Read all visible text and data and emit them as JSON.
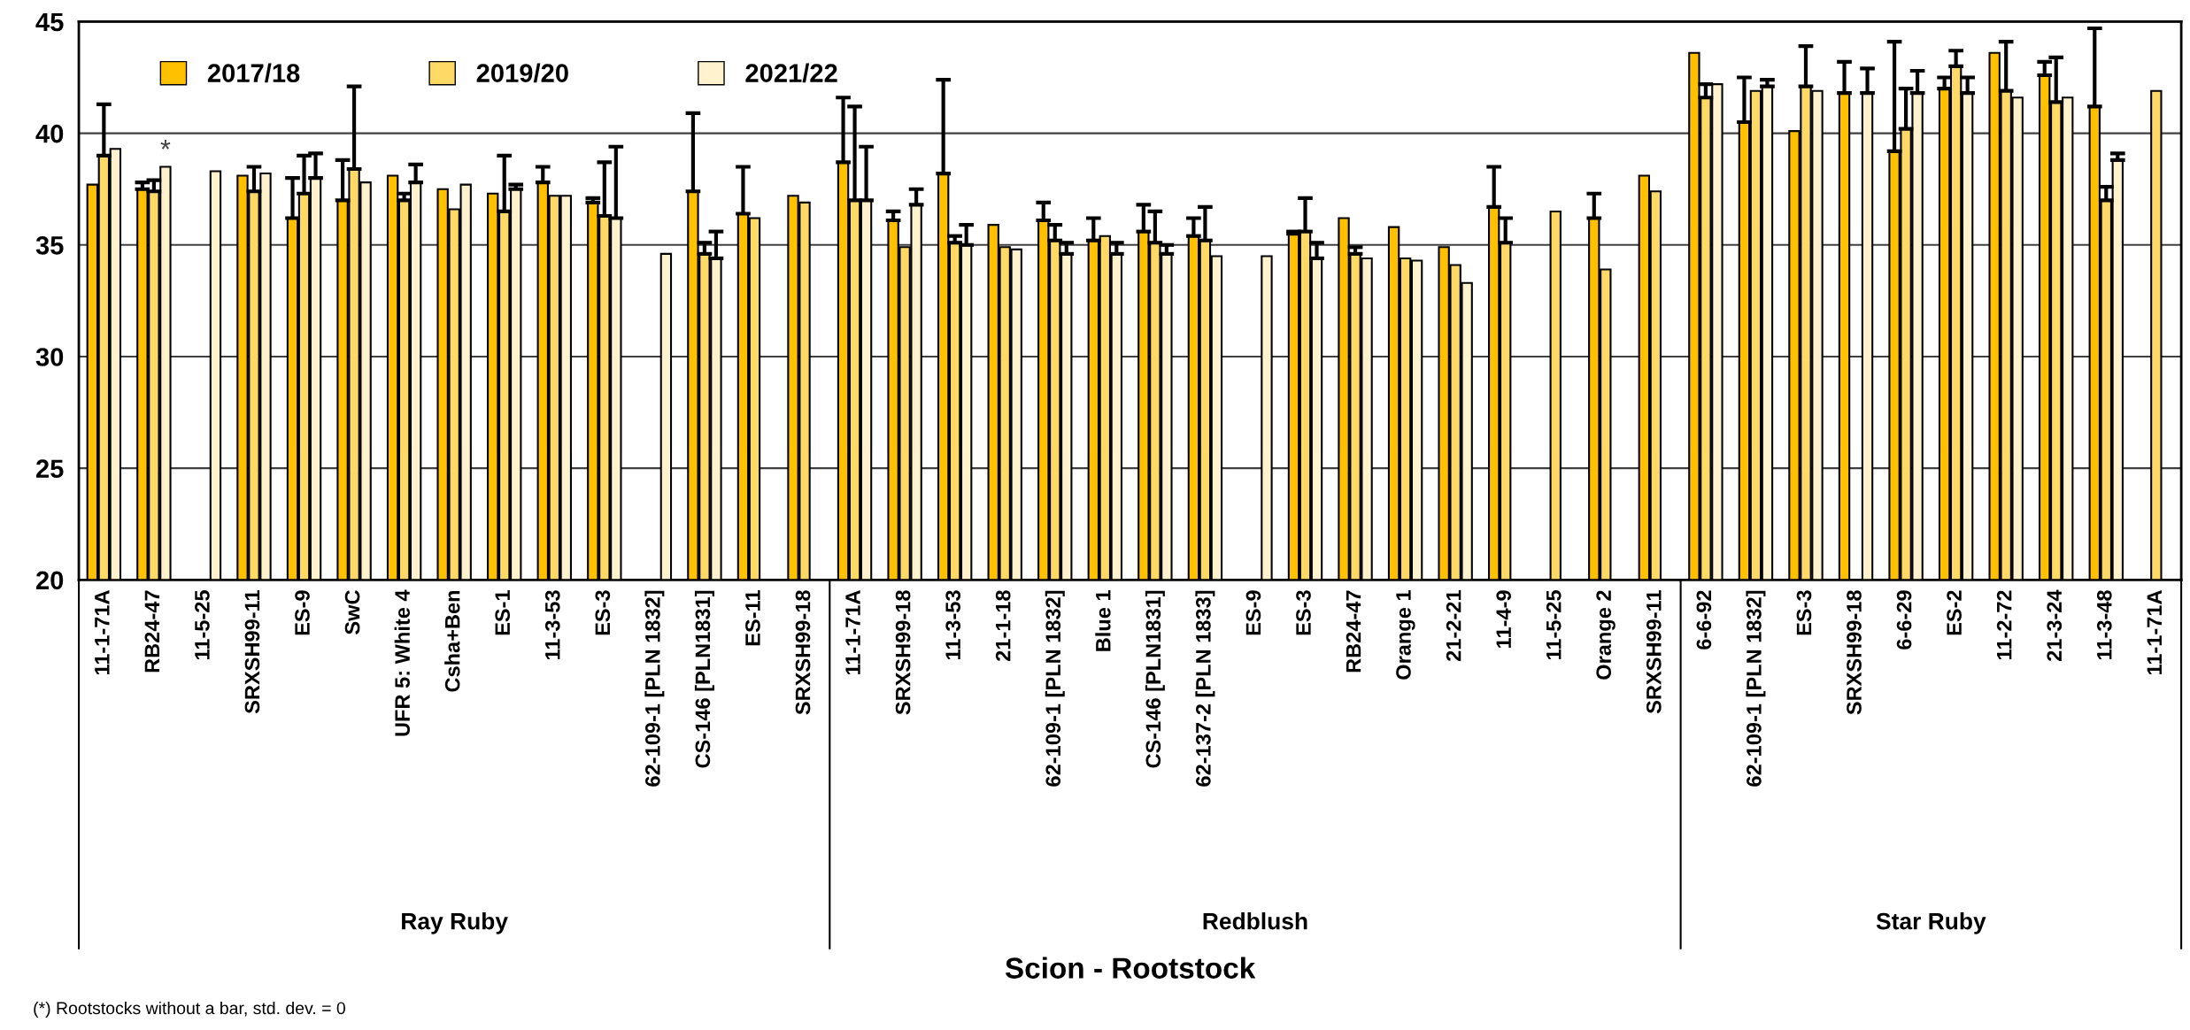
{
  "chart_data": {
    "type": "bar",
    "categories": [
      "11-1-71A",
      "RB24-47",
      "11-5-25",
      "SRXSH99-11",
      "ES-9",
      "SwC",
      "UFR 5: White 4",
      "Csha+Ben",
      "ES-1",
      "11-3-53",
      "ES-3",
      "62-109-1 [PLN 1832]",
      "CS-146 [PLN1831]",
      "ES-11",
      "SRXSH99-18",
      "11-1-71A",
      "SRXSH99-18",
      "11-3-53",
      "21-1-18",
      "62-109-1 [PLN 1832]",
      "Blue 1",
      "CS-146 [PLN1831]",
      "62-137-2 [PLN 1833]",
      "ES-9",
      "ES-3",
      "RB24-47",
      "Orange 1",
      "21-2-21",
      "11-4-9",
      "11-5-25",
      "Orange 2",
      "SRXSH99-11",
      "6-6-92",
      "62-109-1 [PLN 1832]",
      "ES-3",
      "SRXSH99-18",
      "6-6-29",
      "ES-2",
      "11-2-72",
      "21-3-24",
      "11-3-48",
      "11-1-71A"
    ],
    "series": [
      {
        "name": "2017/18",
        "color": "#ffc000",
        "values": [
          37.7,
          37.5,
          null,
          38.1,
          36.2,
          37.0,
          38.1,
          37.5,
          37.3,
          37.8,
          36.9,
          null,
          37.4,
          36.4,
          37.2,
          38.7,
          36.1,
          38.2,
          35.9,
          36.1,
          35.2,
          35.6,
          35.4,
          null,
          35.5,
          36.2,
          35.8,
          34.9,
          36.7,
          null,
          36.2,
          38.1,
          43.6,
          40.5,
          40.1,
          41.8,
          39.2,
          42.0,
          43.6,
          42.6,
          41.2,
          null
        ],
        "errors": [
          null,
          [
            37.5,
            37.8
          ],
          null,
          null,
          [
            36.2,
            38.0
          ],
          [
            37.0,
            38.8
          ],
          null,
          null,
          null,
          [
            37.8,
            38.5
          ],
          [
            36.9,
            37.1
          ],
          null,
          [
            37.4,
            40.9
          ],
          [
            36.4,
            38.5
          ],
          null,
          [
            38.7,
            41.6
          ],
          [
            36.1,
            36.5
          ],
          [
            38.2,
            42.4
          ],
          null,
          [
            36.1,
            36.9
          ],
          [
            35.2,
            36.2
          ],
          [
            35.6,
            36.8
          ],
          [
            35.4,
            36.2
          ],
          null,
          [
            35.5,
            35.6
          ],
          null,
          null,
          null,
          [
            36.7,
            38.5
          ],
          null,
          [
            36.2,
            37.3
          ],
          null,
          null,
          [
            40.5,
            42.5
          ],
          null,
          [
            41.8,
            43.2
          ],
          [
            39.2,
            44.1
          ],
          [
            42.0,
            42.5
          ],
          null,
          [
            42.6,
            43.2
          ],
          [
            41.2,
            44.7
          ],
          null
        ]
      },
      {
        "name": "2019/20",
        "color": "#ffd966",
        "values": [
          39.0,
          37.4,
          null,
          37.4,
          37.3,
          38.4,
          37.0,
          36.6,
          36.5,
          37.2,
          36.3,
          null,
          34.6,
          36.2,
          36.9,
          37.0,
          34.9,
          35.1,
          34.9,
          35.2,
          35.4,
          35.1,
          35.2,
          null,
          35.6,
          34.6,
          34.4,
          34.1,
          35.1,
          36.5,
          33.9,
          37.4,
          41.6,
          41.9,
          42.1,
          null,
          40.2,
          43.0,
          41.9,
          41.4,
          37.0,
          41.9
        ],
        "errors": [
          [
            39.0,
            41.3
          ],
          [
            37.4,
            37.9
          ],
          null,
          [
            37.4,
            38.5
          ],
          [
            37.3,
            39.0
          ],
          [
            38.4,
            42.1
          ],
          [
            37.0,
            37.3
          ],
          null,
          [
            36.5,
            39.0
          ],
          null,
          [
            36.3,
            38.7
          ],
          null,
          [
            34.6,
            35.1
          ],
          null,
          null,
          [
            37.0,
            41.2
          ],
          null,
          [
            35.1,
            35.4
          ],
          null,
          [
            35.2,
            35.9
          ],
          null,
          [
            35.1,
            36.5
          ],
          [
            35.2,
            36.7
          ],
          null,
          [
            35.6,
            37.1
          ],
          [
            34.6,
            34.9
          ],
          null,
          null,
          [
            35.1,
            36.2
          ],
          null,
          null,
          null,
          [
            41.6,
            42.2
          ],
          null,
          [
            42.1,
            43.9
          ],
          null,
          [
            40.2,
            42.0
          ],
          [
            43.0,
            43.7
          ],
          [
            41.9,
            44.1
          ],
          [
            41.4,
            43.4
          ],
          [
            37.0,
            37.6
          ],
          null
        ]
      },
      {
        "name": "2021/22",
        "color": "#fff2cc",
        "values": [
          39.3,
          38.5,
          38.3,
          38.2,
          38.0,
          37.8,
          37.8,
          37.7,
          37.5,
          37.2,
          36.2,
          34.6,
          34.4,
          null,
          null,
          37.0,
          36.8,
          35.0,
          34.8,
          34.6,
          34.6,
          34.6,
          34.5,
          34.5,
          34.4,
          34.4,
          34.3,
          33.3,
          null,
          null,
          null,
          null,
          42.2,
          42.1,
          41.9,
          41.8,
          41.8,
          41.8,
          41.6,
          41.6,
          38.8,
          null
        ],
        "errors": [
          null,
          null,
          null,
          null,
          [
            38.0,
            39.1
          ],
          null,
          [
            37.8,
            38.6
          ],
          null,
          [
            37.5,
            37.7
          ],
          null,
          [
            36.2,
            39.4
          ],
          null,
          [
            34.4,
            35.6
          ],
          null,
          null,
          [
            37.0,
            39.4
          ],
          [
            36.8,
            37.5
          ],
          [
            35.0,
            35.9
          ],
          null,
          [
            34.6,
            35.1
          ],
          [
            34.6,
            35.1
          ],
          [
            34.6,
            35.0
          ],
          null,
          null,
          [
            34.4,
            35.1
          ],
          null,
          null,
          null,
          null,
          null,
          null,
          null,
          null,
          [
            42.1,
            42.4
          ],
          null,
          [
            41.8,
            42.9
          ],
          [
            41.8,
            42.8
          ],
          [
            41.8,
            42.5
          ],
          null,
          null,
          [
            38.8,
            39.1
          ],
          null
        ]
      }
    ],
    "ylim": [
      20,
      45
    ],
    "yticks": [
      20,
      25,
      30,
      35,
      40,
      45
    ],
    "grid": "y",
    "legend": "top",
    "annotations": [
      "*",
      "Ray Ruby",
      "Redblush",
      "Star Ruby",
      "(*) Rootstocks without a bar, std. dev. = 0",
      "Scion - Rootstock"
    ]
  }
}
